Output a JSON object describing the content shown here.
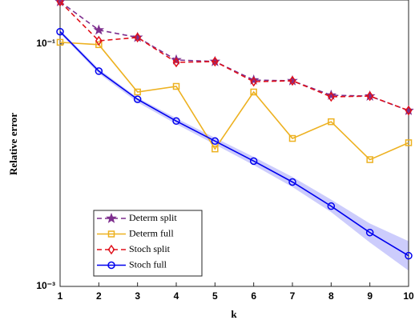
{
  "chart_data": {
    "type": "line",
    "x_label": "k",
    "y_label": "Relative error",
    "x": [
      1,
      2,
      3,
      4,
      5,
      6,
      7,
      8,
      9,
      10
    ],
    "xlim": [
      1,
      10
    ],
    "xticks": [
      1,
      2,
      3,
      4,
      5,
      6,
      7,
      8,
      9,
      10
    ],
    "ylim": [
      0.001,
      0.23
    ],
    "log_y": true,
    "yticks": [
      {
        "value": 0.1,
        "label": "10⁻¹"
      },
      {
        "value": 0.001,
        "label": "10⁻³"
      }
    ],
    "legend": "lower-left",
    "series": [
      {
        "name": "Determ split",
        "color": "#7e2f8e",
        "dash": true,
        "marker": "star",
        "values": [
          0.223,
          0.13,
          0.113,
          0.0737,
          0.0715,
          0.0503,
          0.0496,
          0.0377,
          0.0371,
          0.0282
        ]
      },
      {
        "name": "Determ full",
        "color": "#edb120",
        "dash": false,
        "marker": "square",
        "values": [
          0.103,
          0.0985,
          0.0401,
          0.0446,
          0.0136,
          0.0401,
          0.0166,
          0.0228,
          0.0111,
          0.0153
        ]
      },
      {
        "name": "Stoch split",
        "color": "#e0101a",
        "dash": true,
        "marker": "diamond",
        "values": [
          0.223,
          0.106,
          0.113,
          0.0704,
          0.0715,
          0.0488,
          0.0496,
          0.0366,
          0.0371,
          0.0282
        ]
      },
      {
        "name": "Stoch full",
        "color": "#0000ee",
        "dash": false,
        "marker": "circle",
        "values": [
          0.126,
          0.0596,
          0.0349,
          0.0231,
          0.0158,
          0.0108,
          0.00726,
          0.00459,
          0.00278,
          0.00179
        ],
        "band_upper": [
          0.13,
          0.062,
          0.036,
          0.0244,
          0.0168,
          0.0117,
          0.008,
          0.0052,
          0.0033,
          0.00236
        ],
        "band_lower": [
          0.122,
          0.057,
          0.033,
          0.0218,
          0.0148,
          0.01,
          0.0066,
          0.0041,
          0.0023,
          0.00135
        ]
      }
    ]
  }
}
